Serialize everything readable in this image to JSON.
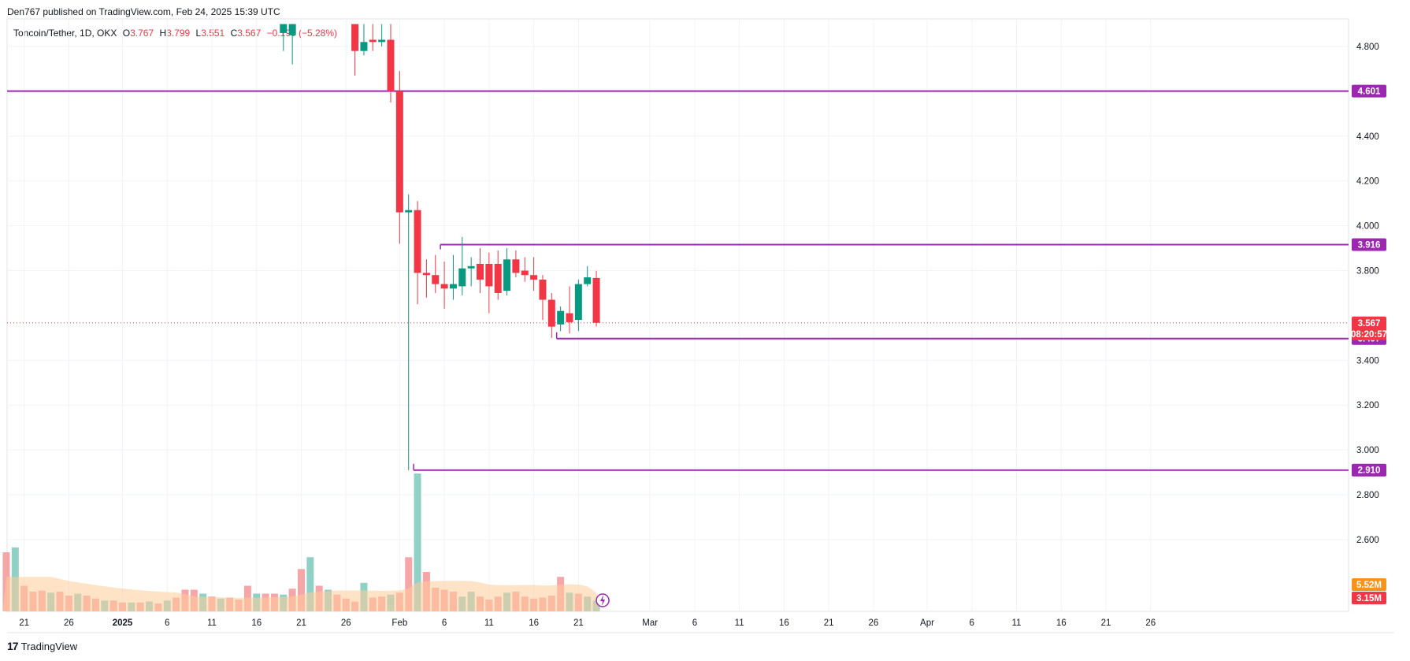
{
  "header": {
    "published": "Den767 published on TradingView.com, Feb 24, 2025 15:39 UTC"
  },
  "legend": {
    "symbol": "Toncoin/Tether, 1D, OKX",
    "o_label": "O",
    "o_value": "3.767",
    "h_label": "H",
    "h_value": "3.799",
    "l_label": "L",
    "l_value": "3.551",
    "c_label": "C",
    "c_value": "3.567",
    "change": "−0.199 (−5.28%)"
  },
  "footer": {
    "brand": "TradingView",
    "brand_mark": "17"
  },
  "colors": {
    "up": "#089981",
    "down": "#f23645",
    "level": "#9c27b0",
    "vol_up": "#8fd1c5",
    "vol_down": "#f7a6a8",
    "vol_ma": "#ffcc99",
    "price_tag": "#f23645",
    "vol_tag_1": "#f7931a",
    "vol_tag_2": "#f23645"
  },
  "chart_data": {
    "type": "candlestick",
    "symbol": "Toncoin/Tether",
    "interval": "1D",
    "exchange": "OKX",
    "y_ticks": [
      "4.800",
      "4.400",
      "4.200",
      "4.000",
      "3.800",
      "3.400",
      "3.200",
      "3.000",
      "2.800",
      "2.600"
    ],
    "y_tick_values": [
      4.8,
      4.4,
      4.2,
      4.0,
      3.8,
      3.4,
      3.2,
      3.0,
      2.8,
      2.6
    ],
    "x_ticks": [
      "21",
      "26",
      "2025",
      "6",
      "11",
      "16",
      "21",
      "26",
      "Feb",
      "6",
      "11",
      "16",
      "21",
      "Mar",
      "6",
      "11",
      "16",
      "21",
      "26",
      "Apr",
      "6",
      "11",
      "16",
      "21",
      "26"
    ],
    "x_tick_dates": [
      "2024-12-21",
      "2024-12-26",
      "2025-01-01",
      "2025-01-06",
      "2025-01-11",
      "2025-01-16",
      "2025-01-21",
      "2025-01-26",
      "2025-02-01",
      "2025-02-06",
      "2025-02-11",
      "2025-02-16",
      "2025-02-21",
      "2025-03-01",
      "2025-03-06",
      "2025-03-11",
      "2025-03-16",
      "2025-03-21",
      "2025-03-26",
      "2025-04-01",
      "2025-04-06",
      "2025-04-11",
      "2025-04-16",
      "2025-04-21",
      "2025-04-26"
    ],
    "levels": [
      {
        "label": "4.601",
        "value": 4.601,
        "from": "2024-12-20"
      },
      {
        "label": "3.916",
        "value": 3.916,
        "from": "2025-02-06"
      },
      {
        "label": "3.497",
        "value": 3.497,
        "from": "2025-02-19"
      },
      {
        "label": "2.910",
        "value": 2.91,
        "from": "2025-02-03"
      }
    ],
    "last_price": {
      "label": "3.567",
      "value": 3.567,
      "countdown": "08:20:57"
    },
    "volume_tags": [
      "5.52M",
      "3.15M"
    ],
    "candles": [
      {
        "d": "2025-01-19",
        "o": 4.86,
        "h": 4.9,
        "l": 4.78,
        "c": 4.9
      },
      {
        "d": "2025-01-20",
        "o": 4.85,
        "h": 4.9,
        "l": 4.72,
        "c": 4.9
      },
      {
        "d": "2025-01-27",
        "o": 4.9,
        "h": 4.9,
        "l": 4.67,
        "c": 4.78
      },
      {
        "d": "2025-01-28",
        "o": 4.78,
        "h": 4.9,
        "l": 4.76,
        "c": 4.82
      },
      {
        "d": "2025-01-29",
        "o": 4.83,
        "h": 4.9,
        "l": 4.78,
        "c": 4.82
      },
      {
        "d": "2025-01-30",
        "o": 4.82,
        "h": 4.9,
        "l": 4.8,
        "c": 4.83
      },
      {
        "d": "2025-01-31",
        "o": 4.83,
        "h": 4.9,
        "l": 4.55,
        "c": 4.6
      },
      {
        "d": "2025-02-01",
        "o": 4.6,
        "h": 4.69,
        "l": 3.92,
        "c": 4.06
      },
      {
        "d": "2025-02-02",
        "o": 4.06,
        "h": 4.14,
        "l": 2.91,
        "c": 4.07
      },
      {
        "d": "2025-02-03",
        "o": 4.07,
        "h": 4.11,
        "l": 3.65,
        "c": 3.79
      },
      {
        "d": "2025-02-04",
        "o": 3.79,
        "h": 3.85,
        "l": 3.68,
        "c": 3.78
      },
      {
        "d": "2025-02-05",
        "o": 3.78,
        "h": 3.87,
        "l": 3.7,
        "c": 3.74
      },
      {
        "d": "2025-02-06",
        "o": 3.74,
        "h": 3.84,
        "l": 3.63,
        "c": 3.72
      },
      {
        "d": "2025-02-07",
        "o": 3.72,
        "h": 3.87,
        "l": 3.67,
        "c": 3.74
      },
      {
        "d": "2025-02-08",
        "o": 3.73,
        "h": 3.95,
        "l": 3.69,
        "c": 3.81
      },
      {
        "d": "2025-02-09",
        "o": 3.81,
        "h": 3.86,
        "l": 3.73,
        "c": 3.82
      },
      {
        "d": "2025-02-10",
        "o": 3.83,
        "h": 3.9,
        "l": 3.7,
        "c": 3.76
      },
      {
        "d": "2025-02-11",
        "o": 3.83,
        "h": 3.88,
        "l": 3.61,
        "c": 3.73
      },
      {
        "d": "2025-02-12",
        "o": 3.83,
        "h": 3.89,
        "l": 3.67,
        "c": 3.7
      },
      {
        "d": "2025-02-13",
        "o": 3.71,
        "h": 3.9,
        "l": 3.69,
        "c": 3.85
      },
      {
        "d": "2025-02-14",
        "o": 3.85,
        "h": 3.89,
        "l": 3.77,
        "c": 3.79
      },
      {
        "d": "2025-02-15",
        "o": 3.8,
        "h": 3.86,
        "l": 3.75,
        "c": 3.78
      },
      {
        "d": "2025-02-16",
        "o": 3.78,
        "h": 3.86,
        "l": 3.71,
        "c": 3.76
      },
      {
        "d": "2025-02-17",
        "o": 3.76,
        "h": 3.78,
        "l": 3.58,
        "c": 3.67
      },
      {
        "d": "2025-02-18",
        "o": 3.67,
        "h": 3.7,
        "l": 3.5,
        "c": 3.55
      },
      {
        "d": "2025-02-19",
        "o": 3.56,
        "h": 3.64,
        "l": 3.53,
        "c": 3.62
      },
      {
        "d": "2025-02-20",
        "o": 3.61,
        "h": 3.73,
        "l": 3.52,
        "c": 3.57
      },
      {
        "d": "2025-02-21",
        "o": 3.58,
        "h": 3.76,
        "l": 3.53,
        "c": 3.74
      },
      {
        "d": "2025-02-22",
        "o": 3.74,
        "h": 3.82,
        "l": 3.73,
        "c": 3.77
      },
      {
        "d": "2025-02-23",
        "o": 3.767,
        "h": 3.799,
        "l": 3.551,
        "c": 3.567
      }
    ],
    "volume": [
      {
        "d": "2024-12-19",
        "v": 6.0,
        "up": false
      },
      {
        "d": "2024-12-20",
        "v": 6.5,
        "up": true
      },
      {
        "d": "2024-12-21",
        "v": 2.6,
        "up": false
      },
      {
        "d": "2024-12-22",
        "v": 2.0,
        "up": false
      },
      {
        "d": "2024-12-23",
        "v": 2.1,
        "up": false
      },
      {
        "d": "2024-12-24",
        "v": 1.9,
        "up": true
      },
      {
        "d": "2024-12-25",
        "v": 2.0,
        "up": false
      },
      {
        "d": "2024-12-26",
        "v": 1.6,
        "up": false
      },
      {
        "d": "2024-12-27",
        "v": 1.8,
        "up": true
      },
      {
        "d": "2024-12-28",
        "v": 1.6,
        "up": false
      },
      {
        "d": "2024-12-29",
        "v": 1.3,
        "up": false
      },
      {
        "d": "2024-12-30",
        "v": 1.1,
        "up": true
      },
      {
        "d": "2024-12-31",
        "v": 1.1,
        "up": false
      },
      {
        "d": "2025-01-01",
        "v": 0.9,
        "up": false
      },
      {
        "d": "2025-01-02",
        "v": 0.9,
        "up": true
      },
      {
        "d": "2025-01-03",
        "v": 0.9,
        "up": false
      },
      {
        "d": "2025-01-04",
        "v": 1.0,
        "up": true
      },
      {
        "d": "2025-01-05",
        "v": 0.8,
        "up": false
      },
      {
        "d": "2025-01-06",
        "v": 1.1,
        "up": true
      },
      {
        "d": "2025-01-07",
        "v": 1.4,
        "up": false
      },
      {
        "d": "2025-01-08",
        "v": 2.2,
        "up": false
      },
      {
        "d": "2025-01-09",
        "v": 2.2,
        "up": false
      },
      {
        "d": "2025-01-10",
        "v": 1.8,
        "up": true
      },
      {
        "d": "2025-01-11",
        "v": 1.5,
        "up": false
      },
      {
        "d": "2025-01-12",
        "v": 1.3,
        "up": true
      },
      {
        "d": "2025-01-13",
        "v": 1.4,
        "up": false
      },
      {
        "d": "2025-01-14",
        "v": 1.2,
        "up": false
      },
      {
        "d": "2025-01-15",
        "v": 2.6,
        "up": false
      },
      {
        "d": "2025-01-16",
        "v": 1.8,
        "up": true
      },
      {
        "d": "2025-01-17",
        "v": 1.8,
        "up": false
      },
      {
        "d": "2025-01-18",
        "v": 1.8,
        "up": false
      },
      {
        "d": "2025-01-19",
        "v": 1.7,
        "up": true
      },
      {
        "d": "2025-01-20",
        "v": 2.3,
        "up": false
      },
      {
        "d": "2025-01-21",
        "v": 4.3,
        "up": false
      },
      {
        "d": "2025-01-22",
        "v": 5.5,
        "up": true
      },
      {
        "d": "2025-01-23",
        "v": 2.6,
        "up": false
      },
      {
        "d": "2025-01-24",
        "v": 2.2,
        "up": true
      },
      {
        "d": "2025-01-25",
        "v": 1.7,
        "up": false
      },
      {
        "d": "2025-01-26",
        "v": 1.3,
        "up": false
      },
      {
        "d": "2025-01-27",
        "v": 1.0,
        "up": false
      },
      {
        "d": "2025-01-28",
        "v": 2.9,
        "up": true
      },
      {
        "d": "2025-01-29",
        "v": 1.4,
        "up": false
      },
      {
        "d": "2025-01-30",
        "v": 1.5,
        "up": false
      },
      {
        "d": "2025-01-31",
        "v": 1.7,
        "up": true
      },
      {
        "d": "2025-02-01",
        "v": 1.9,
        "up": false
      },
      {
        "d": "2025-02-02",
        "v": 5.5,
        "up": false
      },
      {
        "d": "2025-02-03",
        "v": 14.0,
        "up": true
      },
      {
        "d": "2025-02-04",
        "v": 4.0,
        "up": false
      },
      {
        "d": "2025-02-05",
        "v": 2.4,
        "up": false
      },
      {
        "d": "2025-02-06",
        "v": 2.2,
        "up": false
      },
      {
        "d": "2025-02-07",
        "v": 2.0,
        "up": false
      },
      {
        "d": "2025-02-08",
        "v": 1.5,
        "up": true
      },
      {
        "d": "2025-02-09",
        "v": 2.0,
        "up": true
      },
      {
        "d": "2025-02-10",
        "v": 1.5,
        "up": false
      },
      {
        "d": "2025-02-11",
        "v": 1.2,
        "up": false
      },
      {
        "d": "2025-02-12",
        "v": 1.5,
        "up": false
      },
      {
        "d": "2025-02-13",
        "v": 1.9,
        "up": true
      },
      {
        "d": "2025-02-14",
        "v": 2.0,
        "up": false
      },
      {
        "d": "2025-02-15",
        "v": 1.5,
        "up": false
      },
      {
        "d": "2025-02-16",
        "v": 1.3,
        "up": false
      },
      {
        "d": "2025-02-17",
        "v": 1.4,
        "up": false
      },
      {
        "d": "2025-02-18",
        "v": 1.6,
        "up": false
      },
      {
        "d": "2025-02-19",
        "v": 3.5,
        "up": false
      },
      {
        "d": "2025-02-20",
        "v": 1.9,
        "up": true
      },
      {
        "d": "2025-02-21",
        "v": 1.8,
        "up": false
      },
      {
        "d": "2025-02-22",
        "v": 1.5,
        "up": true
      },
      {
        "d": "2025-02-23",
        "v": 1.1,
        "up": true
      }
    ]
  }
}
